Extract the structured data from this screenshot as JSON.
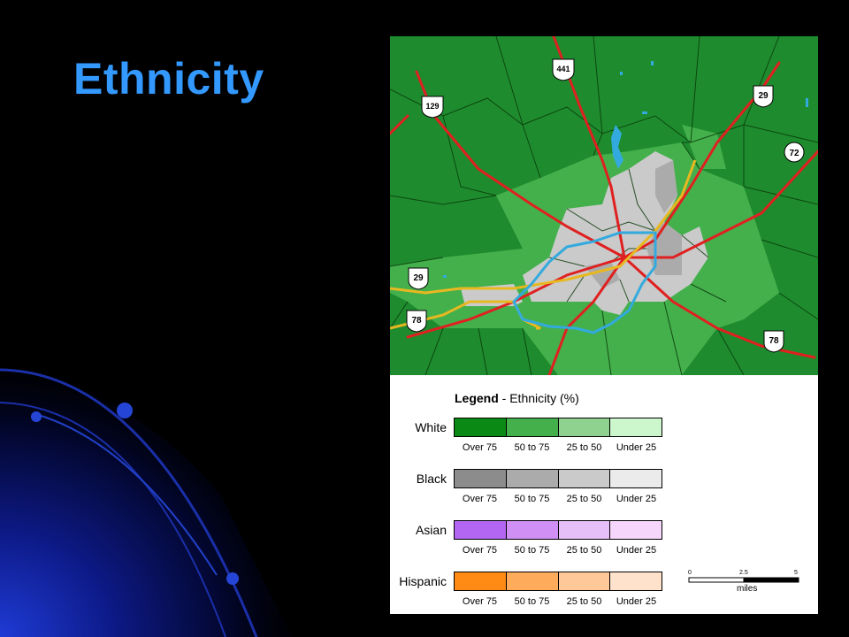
{
  "slide": {
    "title": "Ethnicity",
    "background_color": "#000000",
    "title_color": "#3399ff"
  },
  "map": {
    "roads": [
      {
        "label": "441",
        "type": "us-route-shield"
      },
      {
        "label": "129",
        "type": "us-route-shield"
      },
      {
        "label": "29",
        "type": "us-route-shield"
      },
      {
        "label": "72",
        "type": "state-route-circle"
      },
      {
        "label": "29",
        "type": "us-route-shield"
      },
      {
        "label": "78",
        "type": "us-route-shield"
      },
      {
        "label": "78",
        "type": "us-route-shield"
      }
    ],
    "colors": {
      "background": "#1e8c2e",
      "highway": "#e02020",
      "bypass": "#33aadd",
      "rail": "#e8b820",
      "boundary": "#0a3a0a"
    }
  },
  "legend": {
    "title_bold": "Legend",
    "title_rest": " - Ethnicity (%)",
    "bins": [
      "Over 75",
      "50 to 75",
      "25 to 50",
      "Under 25"
    ],
    "groups": [
      {
        "name": "White",
        "colors": [
          "#0a8a14",
          "#44b04c",
          "#8fd28f",
          "#ccf7cc"
        ]
      },
      {
        "name": "Black",
        "colors": [
          "#8c8c8c",
          "#ababab",
          "#cacaca",
          "#ebebeb"
        ]
      },
      {
        "name": "Asian",
        "colors": [
          "#b366f2",
          "#cf8ff5",
          "#e6bff8",
          "#f7d6fb"
        ]
      },
      {
        "name": "Hispanic",
        "colors": [
          "#ff8a14",
          "#ffab5c",
          "#ffc899",
          "#ffe2cc"
        ]
      }
    ],
    "scale": {
      "ticks": [
        "0",
        "2.5",
        "5"
      ],
      "unit": "miles"
    }
  }
}
